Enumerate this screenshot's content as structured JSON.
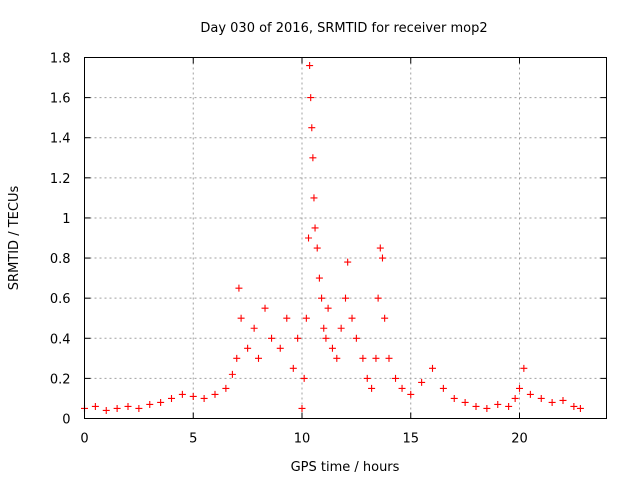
{
  "chart_data": {
    "type": "scatter",
    "title": "Day 030 of 2016, SRMTID for receiver mop2",
    "xlabel": "GPS time / hours",
    "ylabel": "SRMTID / TECUs",
    "xlim": [
      0,
      24
    ],
    "ylim": [
      0,
      1.8
    ],
    "xticks": [
      0,
      5,
      10,
      15,
      20
    ],
    "xtick_labels": [
      "0",
      "5",
      "10",
      "15",
      "20"
    ],
    "yticks": [
      0,
      0.2,
      0.4,
      0.6,
      0.8,
      1.0,
      1.2,
      1.4,
      1.6,
      1.8
    ],
    "ytick_labels": [
      "0",
      "0.2",
      "0.4",
      "0.6",
      "0.8",
      "1",
      "1.2",
      "1.4",
      "1.6",
      "1.8"
    ],
    "grid": true,
    "marker": "+",
    "color": "#ff0000",
    "series": [
      {
        "name": "SRMTID mop2",
        "x": [
          0.0,
          0.5,
          1.0,
          1.5,
          2.0,
          2.5,
          3.0,
          3.5,
          4.0,
          4.5,
          5.0,
          5.5,
          6.0,
          6.5,
          6.8,
          7.0,
          7.1,
          7.2,
          7.5,
          7.8,
          8.0,
          8.3,
          8.6,
          9.0,
          9.3,
          9.6,
          9.8,
          10.0,
          10.1,
          10.2,
          10.3,
          10.35,
          10.4,
          10.45,
          10.5,
          10.55,
          10.6,
          10.7,
          10.8,
          10.9,
          11.0,
          11.1,
          11.2,
          11.4,
          11.6,
          11.8,
          12.0,
          12.1,
          12.3,
          12.5,
          12.8,
          13.0,
          13.2,
          13.4,
          13.5,
          13.6,
          13.7,
          13.8,
          14.0,
          14.3,
          14.6,
          15.0,
          15.5,
          16.0,
          16.5,
          17.0,
          17.5,
          18.0,
          18.5,
          19.0,
          19.5,
          19.8,
          20.0,
          20.2,
          20.5,
          21.0,
          21.5,
          22.0,
          22.5,
          22.8
        ],
        "y": [
          0.05,
          0.06,
          0.04,
          0.05,
          0.06,
          0.05,
          0.07,
          0.08,
          0.1,
          0.12,
          0.11,
          0.1,
          0.12,
          0.15,
          0.22,
          0.3,
          0.65,
          0.5,
          0.35,
          0.45,
          0.3,
          0.55,
          0.4,
          0.35,
          0.5,
          0.25,
          0.4,
          0.05,
          0.2,
          0.5,
          0.9,
          1.76,
          1.6,
          1.45,
          1.3,
          1.1,
          0.95,
          0.85,
          0.7,
          0.6,
          0.45,
          0.4,
          0.55,
          0.35,
          0.3,
          0.45,
          0.6,
          0.78,
          0.5,
          0.4,
          0.3,
          0.2,
          0.15,
          0.3,
          0.6,
          0.85,
          0.8,
          0.5,
          0.3,
          0.2,
          0.15,
          0.12,
          0.18,
          0.25,
          0.15,
          0.1,
          0.08,
          0.06,
          0.05,
          0.07,
          0.06,
          0.1,
          0.15,
          0.25,
          0.12,
          0.1,
          0.08,
          0.09,
          0.06,
          0.05
        ]
      }
    ]
  }
}
